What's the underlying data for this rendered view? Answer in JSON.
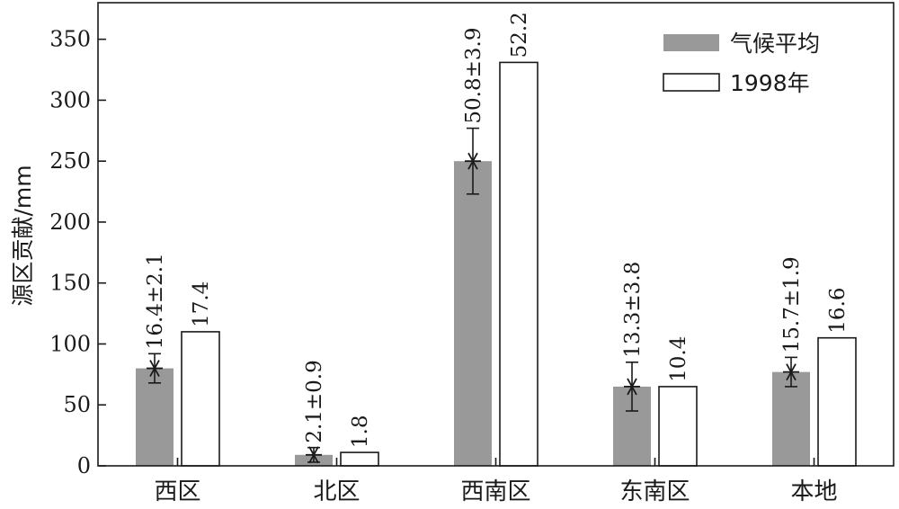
{
  "chart_data": {
    "type": "bar",
    "categories": [
      "西区",
      "北区",
      "西南区",
      "东南区",
      "本地"
    ],
    "ylabel": "源区贡献/mm",
    "xlabel": "",
    "ylim": [
      0,
      380
    ],
    "yticks": [
      0,
      50,
      100,
      150,
      200,
      250,
      300,
      350
    ],
    "grid": false,
    "legend_position": "top-right",
    "series": [
      {
        "name": "气候平均",
        "values": [
          80,
          9,
          250,
          65,
          77
        ],
        "error": [
          12,
          6,
          27,
          20,
          12
        ],
        "labels": [
          "16.4±2.1",
          "2.1±0.9",
          "50.8±3.9",
          "13.3±3.8",
          "15.7±1.9"
        ],
        "color": "#999999"
      },
      {
        "name": "1998年",
        "values": [
          110,
          11,
          331,
          65,
          105
        ],
        "labels": [
          "17.4",
          "1.8",
          "52.2",
          "10.4",
          "16.6"
        ],
        "color": "#ffffff"
      }
    ]
  }
}
